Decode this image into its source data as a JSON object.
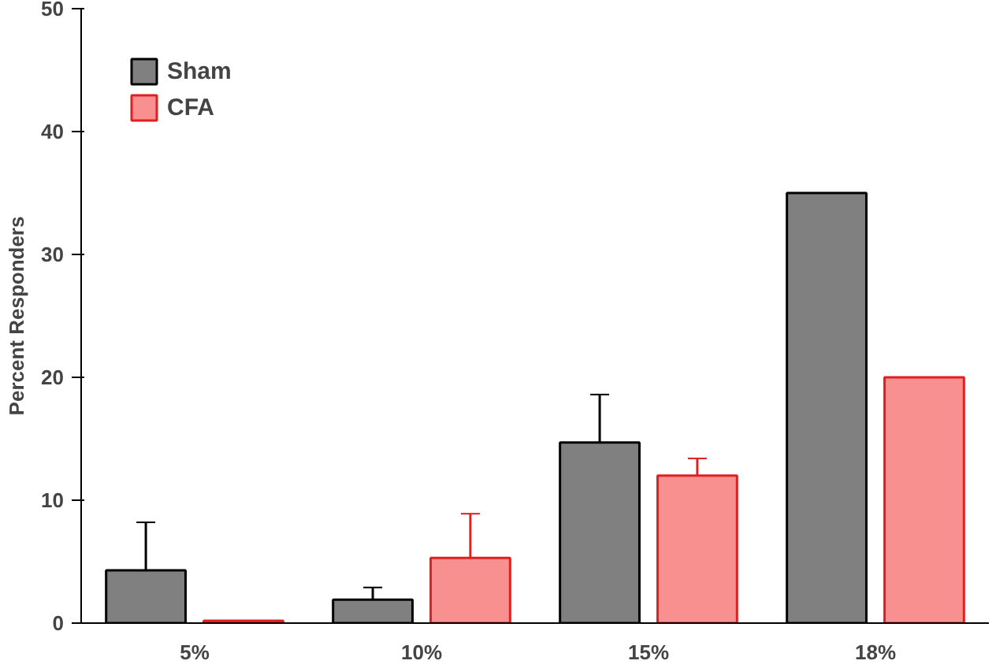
{
  "chart_data": {
    "type": "bar",
    "ylabel": "Percent Responders",
    "categories": [
      "5%",
      "10%",
      "15%",
      "18%"
    ],
    "series": [
      {
        "name": "Sham",
        "color": "#808080",
        "values": [
          4.3,
          1.9,
          14.7,
          35.0
        ],
        "errors": [
          3.9,
          1.0,
          3.9,
          null
        ]
      },
      {
        "name": "CFA",
        "color": "#f99090",
        "values": [
          0.2,
          5.3,
          12.0,
          20.0
        ],
        "errors": [
          null,
          3.6,
          1.4,
          null
        ]
      }
    ],
    "ylim": [
      0,
      50
    ],
    "yticks": [
      0,
      10,
      20,
      30,
      40,
      50
    ],
    "grid": false,
    "legend": "top left"
  }
}
